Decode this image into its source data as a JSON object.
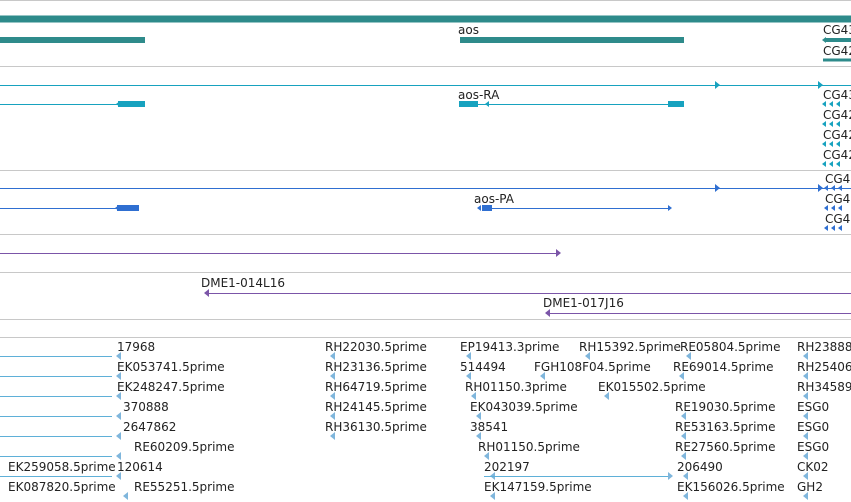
{
  "colors": {
    "background": "#ffffff",
    "separator": "#c8c8c8",
    "gene": "#2e8b8b",
    "transcript": "#17a2bf",
    "protein": "#2f6fd1",
    "clone": "#7b55a8",
    "est": "#7fb6dc",
    "est_line": "#5fb0d8",
    "text": "#222222"
  },
  "tracks": {
    "gene": {
      "labels": [
        "aos",
        "CG43",
        "CG42"
      ]
    },
    "transcript": {
      "labels": [
        "aos-RA",
        "CG43",
        "CG42",
        "CG42",
        "CG42"
      ]
    },
    "protein": {
      "labels": [
        "aos-PA",
        "CG4",
        "CG4",
        "CG4"
      ]
    },
    "clone": {
      "labels": [
        "DME1-014L16",
        "DME1-017J16"
      ]
    },
    "est": {
      "labels": [
        "17968",
        "EK053741.5prime",
        "EK248247.5prime",
        "370888",
        "2647862",
        "RE60209.5prime",
        "EK259058.5prime",
        "120614",
        "EK087820.5prime",
        "RE55251.5prime",
        "RH22030.5prime",
        "RH23136.5prime",
        "RH64719.5prime",
        "RH24145.5prime",
        "RH36130.5prime",
        "EP19413.3prime",
        "514494",
        "RH01150.3prime",
        "EK043039.5prime",
        "38541",
        "RH01150.5prime",
        "202197",
        "EK147159.5prime",
        "RH15392.5prime",
        "FGH108F04.5prime",
        "EK015502.5prime",
        "RE05804.5prime",
        "RE69014.5prime",
        "RE19030.5prime",
        "RE53163.5prime",
        "RE27560.5prime",
        "206490",
        "EK156026.5prime",
        "RH23888",
        "RH25406",
        "RH34589",
        "ESG0",
        "ESG0",
        "ESG0",
        "CK02",
        "GH2"
      ]
    }
  }
}
